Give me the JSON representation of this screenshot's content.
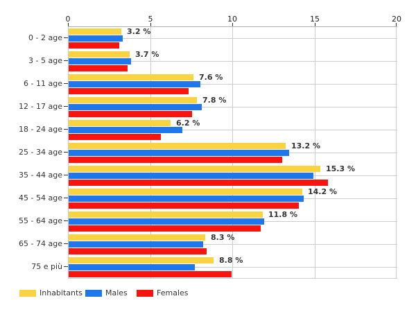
{
  "chart_data": {
    "type": "bar",
    "orientation": "horizontal",
    "title": "",
    "xlabel": "",
    "ylabel": "",
    "xlim": [
      0,
      20
    ],
    "x_ticks": [
      "0",
      "5",
      "10",
      "15",
      "20"
    ],
    "x_tick_values": [
      0,
      5,
      10,
      15,
      20
    ],
    "grid": true,
    "legend_position": "bottom",
    "categories": [
      "0 - 2 age",
      "3 - 5 age",
      "6 - 11 age",
      "12 - 17 age",
      "18 - 24 age",
      "25 - 34 age",
      "35 - 44 age",
      "45 - 54 age",
      "55 - 64 age",
      "65 - 74 age",
      "75 e più"
    ],
    "series": [
      {
        "name": "Inhabitants",
        "color": "#FAD341",
        "values": [
          3.2,
          3.7,
          7.6,
          7.8,
          6.2,
          13.2,
          15.3,
          14.2,
          11.8,
          8.3,
          8.8
        ]
      },
      {
        "name": "Males",
        "color": "#1E77EC",
        "values": [
          3.3,
          3.8,
          8.0,
          8.1,
          6.9,
          13.4,
          14.9,
          14.3,
          11.9,
          8.2,
          7.7
        ]
      },
      {
        "name": "Females",
        "color": "#FA140F",
        "values": [
          3.1,
          3.6,
          7.3,
          7.5,
          5.6,
          13.0,
          15.8,
          14.0,
          11.7,
          8.4,
          9.9
        ]
      }
    ],
    "bar_labels": [
      "3.2 %",
      "3.7 %",
      "7.6 %",
      "7.8 %",
      "6.2 %",
      "13.2 %",
      "15.3 %",
      "14.2 %",
      "11.8 %",
      "8.3 %",
      "8.8 %"
    ]
  },
  "colors": {
    "background": "#ffffff",
    "gridline": "#cccccc",
    "axis_line": "#b0b0b0",
    "tick_mark": "#333333",
    "text": "#333333",
    "value_label": "#333333"
  }
}
